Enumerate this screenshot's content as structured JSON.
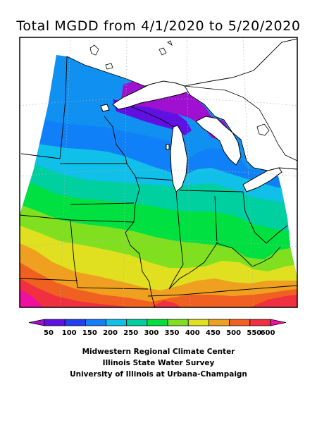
{
  "title": "Total MGDD from 4/1/2020 to 5/20/2020",
  "legend": {
    "values": [
      "50",
      "100",
      "150",
      "200",
      "250",
      "300",
      "350",
      "400",
      "450",
      "500",
      "550",
      "600"
    ],
    "colors": [
      "#a010d0",
      "#6010e0",
      "#2040f0",
      "#1080f8",
      "#10c0e8",
      "#00d0a0",
      "#00e040",
      "#80e020",
      "#e0e020",
      "#f0a020",
      "#f06020",
      "#f03040",
      "#f010a0"
    ]
  },
  "credits": {
    "line1": "Midwestern Regional Climate Center",
    "line2": "Illinois State Water Survey",
    "line3": "University of Illinois at Urbana-Champaign"
  }
}
